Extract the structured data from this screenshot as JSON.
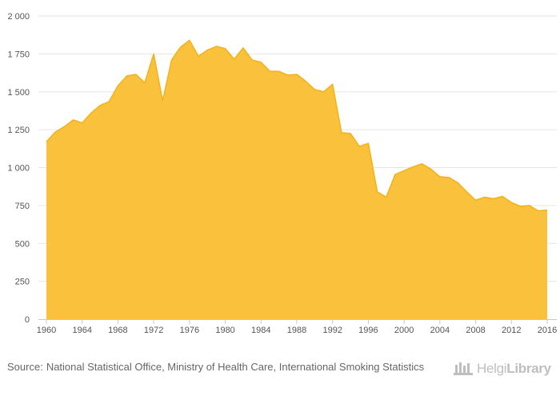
{
  "chart_data": {
    "type": "area",
    "x": [
      1960,
      1961,
      1962,
      1963,
      1964,
      1965,
      1966,
      1967,
      1968,
      1969,
      1970,
      1971,
      1972,
      1973,
      1974,
      1975,
      1976,
      1977,
      1978,
      1979,
      1980,
      1981,
      1982,
      1983,
      1984,
      1985,
      1986,
      1987,
      1988,
      1989,
      1990,
      1991,
      1992,
      1993,
      1994,
      1995,
      1996,
      1997,
      1998,
      1999,
      2000,
      2001,
      2002,
      2003,
      2004,
      2005,
      2006,
      2007,
      2008,
      2009,
      2010,
      2011,
      2012,
      2013,
      2014,
      2015,
      2016
    ],
    "series": [
      {
        "values": [
          1170,
          1235,
          1270,
          1315,
          1295,
          1360,
          1410,
          1435,
          1540,
          1605,
          1615,
          1560,
          1750,
          1440,
          1710,
          1795,
          1840,
          1735,
          1775,
          1800,
          1785,
          1715,
          1790,
          1710,
          1695,
          1635,
          1635,
          1610,
          1615,
          1570,
          1515,
          1500,
          1550,
          1230,
          1225,
          1140,
          1160,
          840,
          805,
          955,
          980,
          1005,
          1025,
          990,
          940,
          935,
          900,
          840,
          785,
          805,
          795,
          810,
          770,
          745,
          750,
          715,
          720
        ]
      }
    ],
    "xlim": [
      1960,
      2016
    ],
    "ylim": [
      0,
      2000
    ],
    "x_ticks": [
      "1960",
      "1964",
      "1968",
      "1972",
      "1976",
      "1980",
      "1984",
      "1988",
      "1992",
      "1996",
      "2000",
      "2004",
      "2008",
      "2012",
      "2016"
    ],
    "y_ticks": [
      "0",
      "250",
      "500",
      "750",
      "1 000",
      "1 250",
      "1 500",
      "1 750",
      "2 000"
    ],
    "grid": true,
    "colors": {
      "fill": "#f9c13c",
      "line": "#f2b318"
    }
  },
  "source": {
    "prefix": "Source:",
    "text": "National Statistical Office, Ministry of Health Care, International Smoking Statistics"
  },
  "logo": {
    "part1": "Helgi",
    "part2": "Library"
  }
}
